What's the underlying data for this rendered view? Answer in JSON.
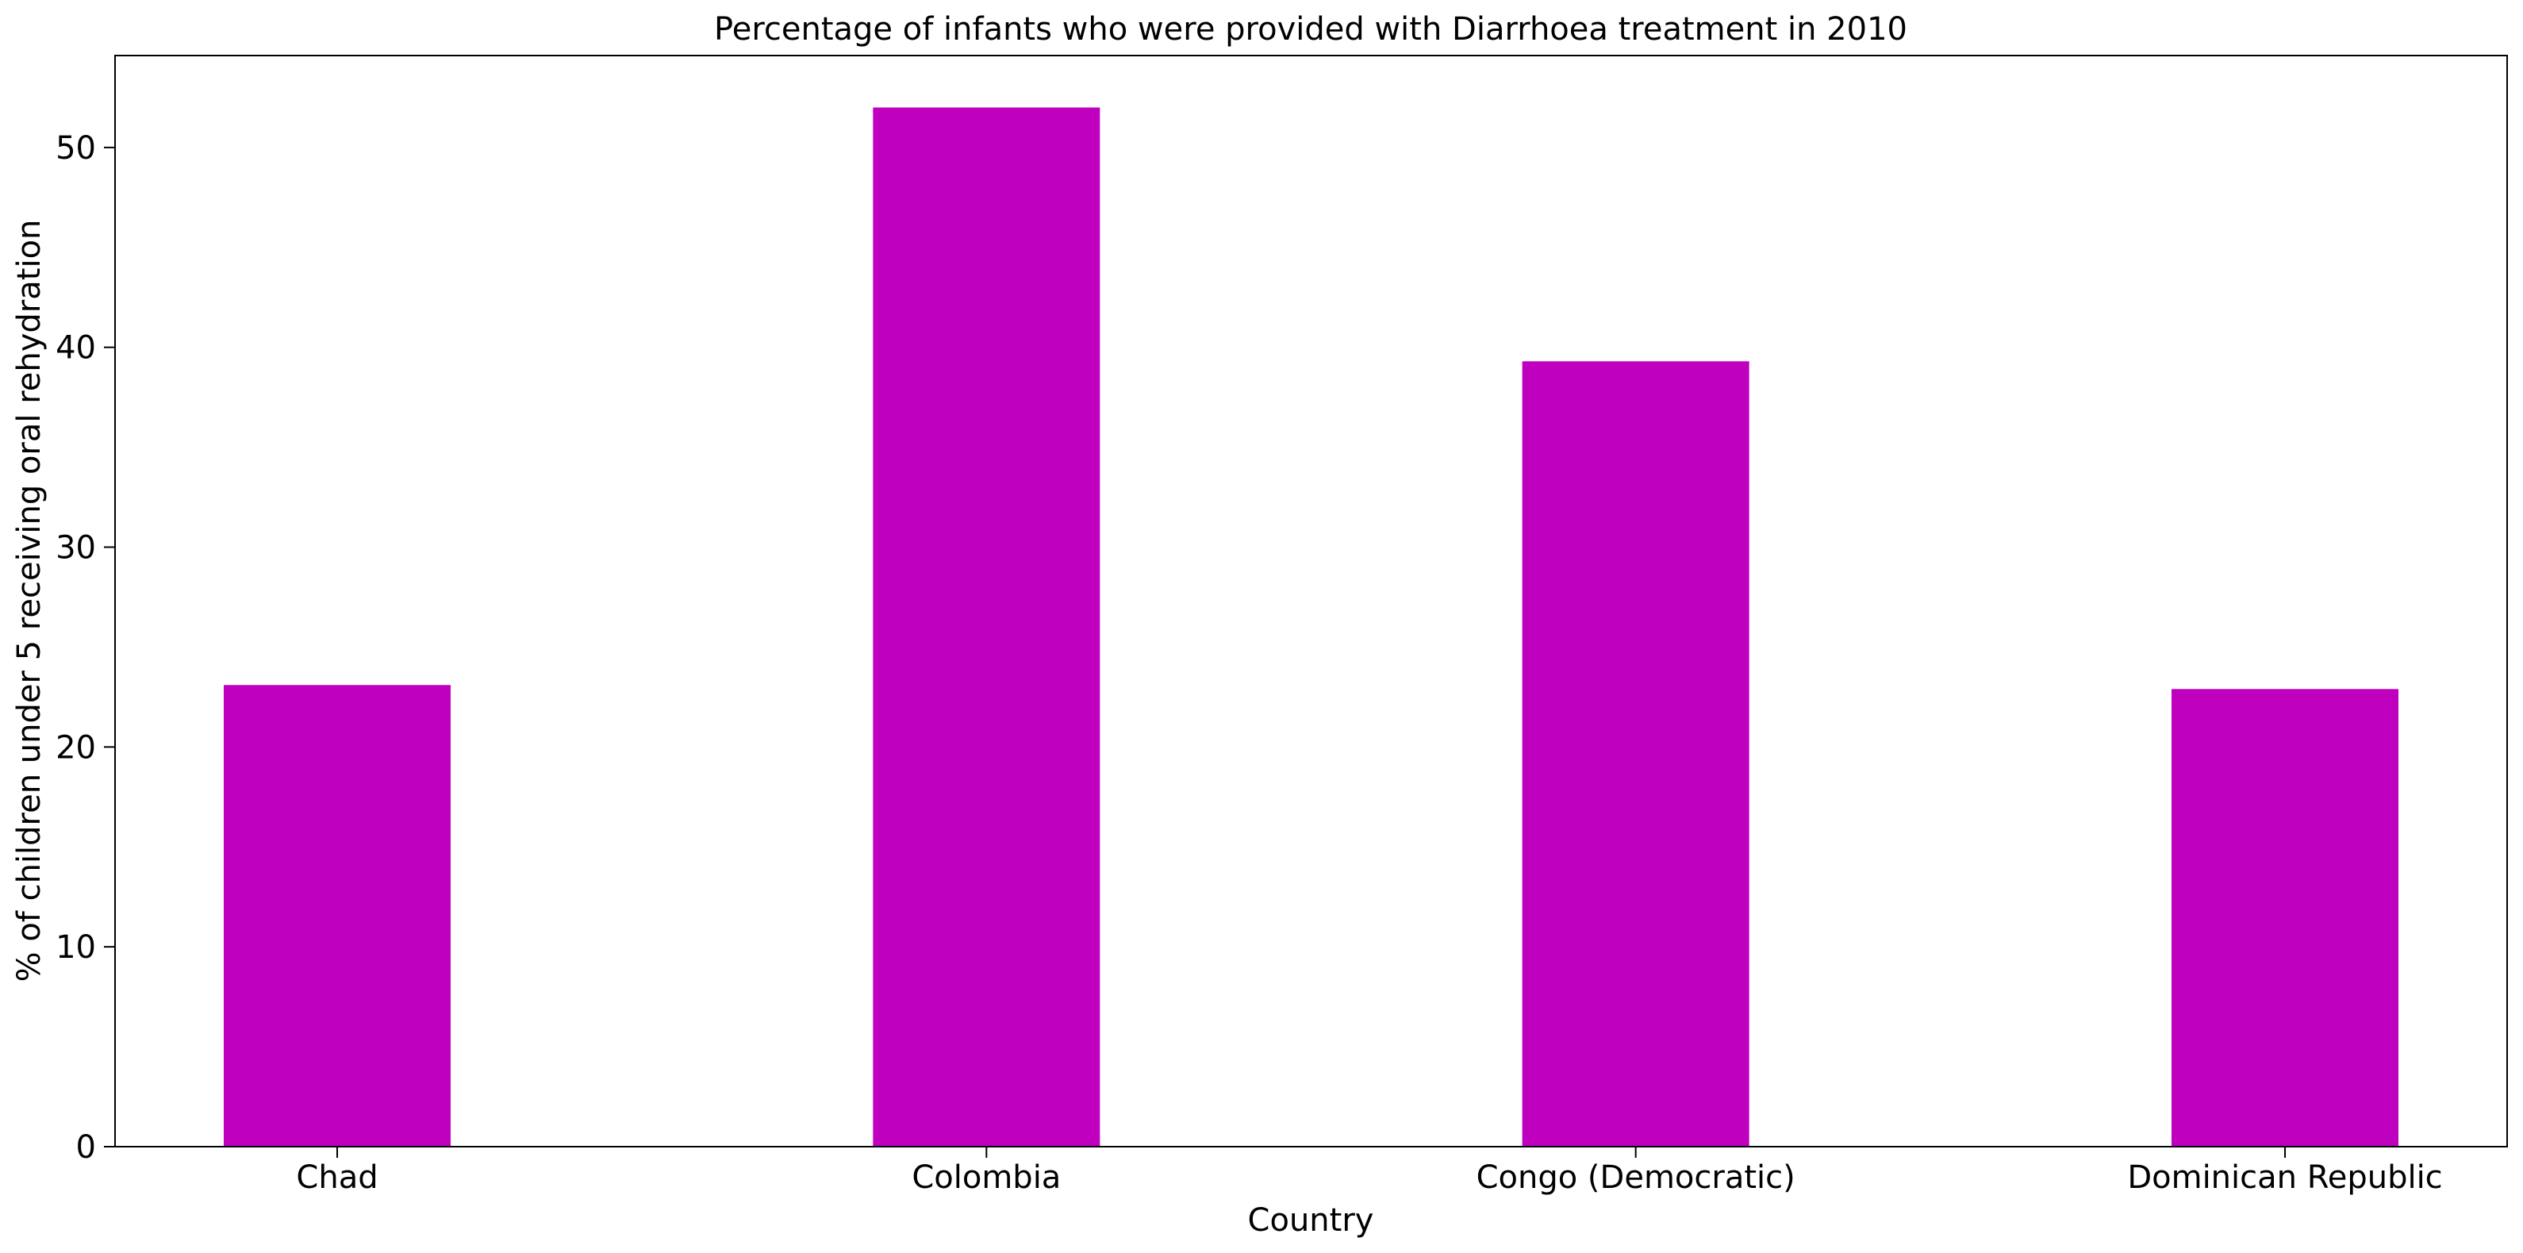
{
  "chart_data": {
    "type": "bar",
    "title": "Percentage of infants who were provided with Diarrhoea treatment in 2010",
    "xlabel": "Country",
    "ylabel": "% of children under 5 receiving oral rehydration",
    "categories": [
      "Chad",
      "Colombia",
      "Congo (Democratic)",
      "Dominican Republic"
    ],
    "values": [
      23.1,
      52.0,
      39.3,
      22.9
    ],
    "ylim": [
      0,
      54.6
    ],
    "yticks": [
      0,
      10,
      20,
      30,
      40,
      50
    ],
    "bar_color": "#bf00bf",
    "grid": false,
    "legend": "none"
  }
}
